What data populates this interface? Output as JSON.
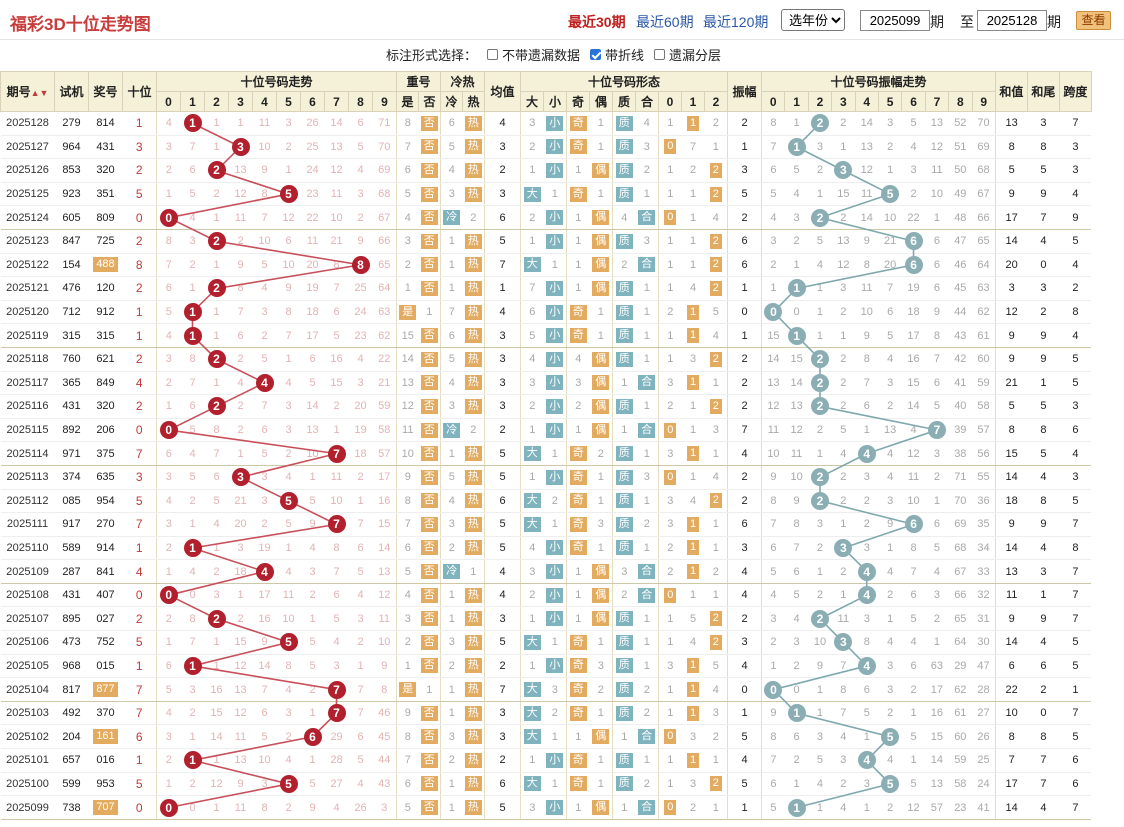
{
  "header": {
    "title": "福彩3D十位走势图",
    "range30": "最近30期",
    "range60": "最近60期",
    "range120": "最近120期",
    "year_select": "选年份",
    "from": "2025099",
    "to": "2025128",
    "qi1": "期",
    "zhi": "至",
    "qi2": "期",
    "query_label": "查看"
  },
  "options": {
    "prompt": "标注形式选择：",
    "o1": "不带遗漏数据",
    "o2": "带折线",
    "o3": "遗漏分层",
    "o1_on": false,
    "o2_on": true,
    "o3_on": false
  },
  "columns": {
    "qihao": "期号",
    "shiji": "试机",
    "jianghao": "奖号",
    "shiwei": "十位",
    "trend": "十位号码走势",
    "chong": "重号",
    "shi": "是",
    "fou": "否",
    "lengre": "冷热",
    "leng": "冷",
    "re": "热",
    "junzhi": "均值",
    "xingtai": "十位号码形态",
    "da": "大",
    "xiao": "小",
    "ji": "奇",
    "ou": "偶",
    "zhi": "质",
    "he": "合",
    "d0": "0",
    "d1": "1",
    "d2": "2",
    "zhenfu": "振幅",
    "zftrend": "十位号码振幅走势",
    "hezhi": "和值",
    "hewei": "和尾",
    "kuadu": "跨度",
    "digits": [
      "0",
      "1",
      "2",
      "3",
      "4",
      "5",
      "6",
      "7",
      "8",
      "9"
    ]
  },
  "colors": {
    "line_red": "#c8505a",
    "line_blue": "#7fa8ae",
    "ball_red": "#b21f2d",
    "ball_blue": "#8aaeb3",
    "badge_orange": "#e3ab60",
    "badge_teal": "#7fb3bd"
  },
  "rows": [
    {
      "q": "2025128",
      "sj": "279",
      "jh": "814",
      "sw": "1",
      "tw": [
        "4",
        "1",
        "1",
        "11",
        "3",
        "26",
        "14",
        "6",
        "71"
      ],
      "cf": "8",
      "lr": "6",
      "jz": "4",
      "zx": [
        "3",
        "1",
        "4",
        "1",
        "1",
        "2"
      ],
      "zf": "2",
      "zft": [
        "8",
        "1",
        "2",
        "14",
        "3",
        "5",
        "13",
        "52",
        "70"
      ],
      "hz": "13",
      "hw": "3",
      "kd": "7"
    },
    {
      "q": "2025127",
      "sj": "964",
      "jh": "431",
      "sw": "3",
      "tw": [
        "3",
        "7",
        "1",
        "10",
        "2",
        "25",
        "13",
        "5",
        "70"
      ],
      "cf": "7",
      "lr": "5",
      "jz": "3",
      "zx": [
        "2",
        "1",
        "3",
        "1",
        "7",
        "1"
      ],
      "zf": "1",
      "zft": [
        "7",
        "3",
        "1",
        "13",
        "2",
        "4",
        "12",
        "51",
        "69"
      ],
      "hz": "8",
      "hw": "8",
      "kd": "3"
    },
    {
      "q": "2025126",
      "sj": "853",
      "jh": "320",
      "sw": "2",
      "tw": [
        "2",
        "6",
        "13",
        "9",
        "1",
        "24",
        "12",
        "4",
        "69"
      ],
      "cf": "6",
      "lr": "4",
      "jz": "2",
      "zx": [
        "1",
        "1",
        "2",
        "1",
        "2",
        "6"
      ],
      "zf": "3",
      "zft": [
        "6",
        "5",
        "2",
        "12",
        "1",
        "3",
        "11",
        "50",
        "68"
      ],
      "hz": "5",
      "hw": "5",
      "kd": "3"
    },
    {
      "q": "2025125",
      "sj": "923",
      "jh": "351",
      "sw": "5",
      "tw": [
        "1",
        "5",
        "2",
        "12",
        "8",
        "23",
        "11",
        "3",
        "68"
      ],
      "cf": "5",
      "lr": "3",
      "jz": "3",
      "zx": [
        "1",
        "1",
        "1",
        "1",
        "1",
        "5"
      ],
      "zf": "5",
      "zft": [
        "5",
        "4",
        "1",
        "15",
        "11",
        "2",
        "10",
        "49",
        "67"
      ],
      "hz": "9",
      "hw": "9",
      "kd": "4"
    },
    {
      "q": "2025124",
      "sj": "605",
      "jh": "809",
      "sw": "0",
      "tw": [
        "4",
        "1",
        "11",
        "7",
        "12",
        "22",
        "10",
        "2",
        "67"
      ],
      "cf": "4",
      "lr": "2",
      "jz": "6",
      "zx": [
        "2",
        "1",
        "4",
        "1",
        "1",
        "4"
      ],
      "zf": "2",
      "zft": [
        "4",
        "3",
        "2",
        "14",
        "10",
        "22",
        "1",
        "48",
        "66"
      ],
      "hz": "17",
      "hw": "7",
      "kd": "9"
    },
    {
      "q": "2025123",
      "sj": "847",
      "jh": "725",
      "sw": "2",
      "tw": [
        "8",
        "3",
        "2",
        "10",
        "6",
        "11",
        "21",
        "9",
        "66"
      ],
      "cf": "3",
      "lr": "1",
      "jz": "5",
      "zx": [
        "1",
        "1",
        "3",
        "1",
        "1",
        "8"
      ],
      "zf": "6",
      "zft": [
        "3",
        "2",
        "5",
        "13",
        "9",
        "21",
        "6",
        "47",
        "65"
      ],
      "hz": "14",
      "hw": "4",
      "kd": "5"
    },
    {
      "q": "2025122",
      "sj": "154",
      "jh": "488",
      "sw": "8",
      "tw": [
        "7",
        "2",
        "1",
        "9",
        "5",
        "10",
        "20",
        "8",
        "65"
      ],
      "cf": "2",
      "lr": "1",
      "jz": "7",
      "zx": [
        "1",
        "1",
        "2",
        "1",
        "1",
        "7"
      ],
      "zf": "6",
      "zft": [
        "2",
        "1",
        "4",
        "12",
        "8",
        "20",
        "6",
        "46",
        "64"
      ],
      "hz": "20",
      "hw": "0",
      "kd": "4"
    },
    {
      "q": "2025121",
      "sj": "476",
      "jh": "120",
      "sw": "2",
      "tw": [
        "6",
        "1",
        "8",
        "4",
        "9",
        "19",
        "7",
        "25",
        "64"
      ],
      "cf": "1",
      "lr": "1",
      "jz": "1",
      "zx": [
        "7",
        "1",
        "1",
        "1",
        "4",
        "6"
      ],
      "zf": "1",
      "zft": [
        "1",
        "1",
        "3",
        "11",
        "7",
        "19",
        "6",
        "45",
        "63"
      ],
      "hz": "3",
      "hw": "3",
      "kd": "2"
    },
    {
      "q": "2025120",
      "sj": "712",
      "jh": "912",
      "sw": "1",
      "tw": [
        "5",
        "1",
        "7",
        "3",
        "8",
        "18",
        "6",
        "24",
        "63"
      ],
      "cf": "1",
      "lr": "7",
      "jz": "4",
      "zx": [
        "6",
        "1",
        "1",
        "2",
        "3",
        "5"
      ],
      "zf": "0",
      "zft": [
        "0",
        "1",
        "2",
        "10",
        "6",
        "18",
        "9",
        "44",
        "62"
      ],
      "hz": "12",
      "hw": "2",
      "kd": "8"
    },
    {
      "q": "2025119",
      "sj": "315",
      "jh": "315",
      "sw": "1",
      "tw": [
        "4",
        "1",
        "6",
        "2",
        "7",
        "17",
        "5",
        "23",
        "62"
      ],
      "cf": "15",
      "lr": "6",
      "jz": "3",
      "zx": [
        "5",
        "1",
        "1",
        "1",
        "2",
        "4"
      ],
      "zf": "1",
      "zft": [
        "15",
        "1",
        "1",
        "9",
        "5",
        "17",
        "8",
        "43",
        "61"
      ],
      "hz": "9",
      "hw": "9",
      "kd": "4"
    },
    {
      "q": "2025118",
      "sj": "760",
      "jh": "621",
      "sw": "2",
      "tw": [
        "3",
        "8",
        "2",
        "5",
        "1",
        "6",
        "16",
        "4",
        "22"
      ],
      "cf": "14",
      "lr": "5",
      "jz": "3",
      "zx": [
        "4",
        "4",
        "1",
        "1",
        "3",
        "1"
      ],
      "zf": "2",
      "zft": [
        "14",
        "15",
        "2",
        "8",
        "4",
        "16",
        "7",
        "42",
        "60"
      ],
      "hz": "9",
      "hw": "9",
      "kd": "5"
    },
    {
      "q": "2025117",
      "sj": "365",
      "jh": "849",
      "sw": "4",
      "tw": [
        "2",
        "7",
        "1",
        "4",
        "4",
        "5",
        "15",
        "3",
        "21"
      ],
      "cf": "13",
      "lr": "4",
      "jz": "3",
      "zx": [
        "3",
        "3",
        "1",
        "3",
        "2",
        "1"
      ],
      "zf": "2",
      "zft": [
        "13",
        "14",
        "2",
        "7",
        "3",
        "15",
        "6",
        "41",
        "59"
      ],
      "hz": "21",
      "hw": "1",
      "kd": "5"
    },
    {
      "q": "2025116",
      "sj": "431",
      "jh": "320",
      "sw": "2",
      "tw": [
        "1",
        "6",
        "2",
        "7",
        "3",
        "14",
        "2",
        "20",
        "59"
      ],
      "cf": "12",
      "lr": "3",
      "jz": "3",
      "zx": [
        "2",
        "2",
        "1",
        "2",
        "1",
        "1"
      ],
      "zf": "2",
      "zft": [
        "12",
        "13",
        "2",
        "6",
        "2",
        "14",
        "5",
        "40",
        "58"
      ],
      "hz": "5",
      "hw": "5",
      "kd": "3"
    },
    {
      "q": "2025115",
      "sj": "892",
      "jh": "206",
      "sw": "0",
      "tw": [
        "5",
        "8",
        "2",
        "6",
        "3",
        "13",
        "1",
        "19",
        "58"
      ],
      "cf": "11",
      "lr": "2",
      "jz": "2",
      "zx": [
        "1",
        "1",
        "1",
        "1",
        "1",
        "3"
      ],
      "zf": "7",
      "zft": [
        "11",
        "12",
        "2",
        "5",
        "1",
        "13",
        "4",
        "39",
        "57"
      ],
      "hz": "8",
      "hw": "8",
      "kd": "6"
    },
    {
      "q": "2025114",
      "sj": "971",
      "jh": "375",
      "sw": "7",
      "tw": [
        "6",
        "4",
        "7",
        "1",
        "5",
        "2",
        "10",
        "18",
        "57"
      ],
      "cf": "10",
      "lr": "1",
      "jz": "5",
      "zx": [
        "1",
        "2",
        "1",
        "3",
        "1",
        "1"
      ],
      "zf": "4",
      "zft": [
        "10",
        "11",
        "1",
        "4",
        "4",
        "12",
        "3",
        "38",
        "56"
      ],
      "hz": "15",
      "hw": "5",
      "kd": "4"
    },
    {
      "q": "2025113",
      "sj": "374",
      "jh": "635",
      "sw": "3",
      "tw": [
        "3",
        "5",
        "6",
        "3",
        "4",
        "1",
        "11",
        "2",
        "17"
      ],
      "cf": "9",
      "lr": "5",
      "jz": "5",
      "zx": [
        "1",
        "1",
        "3",
        "1",
        "1",
        "4"
      ],
      "zf": "2",
      "zft": [
        "9",
        "10",
        "2",
        "3",
        "4",
        "11",
        "2",
        "71",
        "55"
      ],
      "hz": "14",
      "hw": "4",
      "kd": "3"
    },
    {
      "q": "2025112",
      "sj": "085",
      "jh": "954",
      "sw": "5",
      "tw": [
        "4",
        "2",
        "5",
        "21",
        "3",
        "5",
        "10",
        "1",
        "16"
      ],
      "cf": "8",
      "lr": "4",
      "jz": "6",
      "zx": [
        "2",
        "1",
        "1",
        "3",
        "4",
        "2"
      ],
      "zf": "2",
      "zft": [
        "8",
        "9",
        "2",
        "2",
        "3",
        "10",
        "1",
        "70",
        "36"
      ],
      "hz": "18",
      "hw": "8",
      "kd": "5"
    },
    {
      "q": "2025111",
      "sj": "917",
      "jh": "270",
      "sw": "7",
      "tw": [
        "3",
        "1",
        "4",
        "20",
        "2",
        "5",
        "9",
        "7",
        "15"
      ],
      "cf": "7",
      "lr": "3",
      "jz": "5",
      "zx": [
        "1",
        "3",
        "2",
        "3",
        "2",
        "1"
      ],
      "zf": "6",
      "zft": [
        "7",
        "8",
        "3",
        "1",
        "2",
        "9",
        "6",
        "69",
        "35"
      ],
      "hz": "9",
      "hw": "9",
      "kd": "7"
    },
    {
      "q": "2025110",
      "sj": "589",
      "jh": "914",
      "sw": "1",
      "tw": [
        "2",
        "1",
        "3",
        "19",
        "1",
        "4",
        "8",
        "6",
        "14"
      ],
      "cf": "6",
      "lr": "2",
      "jz": "5",
      "zx": [
        "4",
        "1",
        "1",
        "2",
        "1",
        "1"
      ],
      "zf": "3",
      "zft": [
        "6",
        "7",
        "2",
        "3",
        "1",
        "8",
        "5",
        "68",
        "34"
      ],
      "hz": "14",
      "hw": "4",
      "kd": "8"
    },
    {
      "q": "2025109",
      "sj": "287",
      "jh": "841",
      "sw": "4",
      "tw": [
        "1",
        "4",
        "2",
        "18",
        "4",
        "3",
        "7",
        "5",
        "13"
      ],
      "cf": "5",
      "lr": "1",
      "jz": "4",
      "zx": [
        "3",
        "1",
        "3",
        "2",
        "1",
        "2"
      ],
      "zf": "4",
      "zft": [
        "5",
        "6",
        "1",
        "2",
        "4",
        "7",
        "4",
        "67",
        "33"
      ],
      "hz": "13",
      "hw": "3",
      "kd": "7"
    },
    {
      "q": "2025108",
      "sj": "431",
      "jh": "407",
      "sw": "0",
      "tw": [
        "0",
        "3",
        "1",
        "17",
        "11",
        "2",
        "6",
        "4",
        "12"
      ],
      "cf": "4",
      "lr": "1",
      "jz": "4",
      "zx": [
        "2",
        "1",
        "2",
        "1",
        "1",
        "1"
      ],
      "zf": "4",
      "zft": [
        "4",
        "5",
        "2",
        "1",
        "2",
        "6",
        "3",
        "66",
        "32"
      ],
      "hz": "11",
      "hw": "1",
      "kd": "7"
    },
    {
      "q": "2025107",
      "sj": "895",
      "jh": "027",
      "sw": "2",
      "tw": [
        "2",
        "8",
        "2",
        "16",
        "10",
        "1",
        "5",
        "3",
        "11"
      ],
      "cf": "3",
      "lr": "1",
      "jz": "3",
      "zx": [
        "1",
        "1",
        "1",
        "1",
        "5",
        "2"
      ],
      "zf": "2",
      "zft": [
        "3",
        "4",
        "11",
        "3",
        "1",
        "5",
        "2",
        "65",
        "31"
      ],
      "hz": "9",
      "hw": "9",
      "kd": "7"
    },
    {
      "q": "2025106",
      "sj": "473",
      "jh": "752",
      "sw": "5",
      "tw": [
        "1",
        "7",
        "1",
        "15",
        "9",
        "5",
        "4",
        "2",
        "10"
      ],
      "cf": "2",
      "lr": "3",
      "jz": "5",
      "zx": [
        "1",
        "1",
        "1",
        "1",
        "4",
        "1"
      ],
      "zf": "3",
      "zft": [
        "2",
        "3",
        "10",
        "8",
        "4",
        "4",
        "1",
        "64",
        "30"
      ],
      "hz": "14",
      "hw": "4",
      "kd": "5"
    },
    {
      "q": "2025105",
      "sj": "968",
      "jh": "015",
      "sw": "1",
      "tw": [
        "6",
        "1",
        "12",
        "14",
        "8",
        "5",
        "3",
        "1",
        "9"
      ],
      "cf": "1",
      "lr": "2",
      "jz": "2",
      "zx": [
        "1",
        "3",
        "1",
        "3",
        "1",
        "5"
      ],
      "zf": "4",
      "zft": [
        "1",
        "2",
        "9",
        "7",
        "3",
        "6",
        "63",
        "29",
        "47"
      ],
      "hz": "6",
      "hw": "6",
      "kd": "5"
    },
    {
      "q": "2025104",
      "sj": "817",
      "jh": "877",
      "sw": "7",
      "tw": [
        "5",
        "3",
        "16",
        "13",
        "7",
        "4",
        "2",
        "7",
        "8"
      ],
      "cf": "1",
      "lr": "1",
      "jz": "7",
      "zx": [
        "3",
        "2",
        "2",
        "1",
        "2",
        "4"
      ],
      "zf": "0",
      "zft": [
        "0",
        "1",
        "8",
        "6",
        "3",
        "2",
        "17",
        "62",
        "28"
      ],
      "hz": "22",
      "hw": "2",
      "kd": "1"
    },
    {
      "q": "2025103",
      "sj": "492",
      "jh": "370",
      "sw": "7",
      "tw": [
        "4",
        "2",
        "15",
        "12",
        "6",
        "3",
        "1",
        "7",
        "46"
      ],
      "cf": "9",
      "lr": "1",
      "jz": "3",
      "zx": [
        "2",
        "1",
        "2",
        "1",
        "4",
        "3"
      ],
      "zf": "1",
      "zft": [
        "9",
        "1",
        "7",
        "5",
        "2",
        "1",
        "16",
        "61",
        "27"
      ],
      "hz": "10",
      "hw": "0",
      "kd": "7"
    },
    {
      "q": "2025102",
      "sj": "204",
      "jh": "161",
      "sw": "6",
      "tw": [
        "3",
        "1",
        "14",
        "11",
        "5",
        "2",
        "29",
        "6",
        "45"
      ],
      "cf": "8",
      "lr": "3",
      "jz": "3",
      "zx": [
        "1",
        "1",
        "1",
        "1",
        "3",
        "2"
      ],
      "zf": "5",
      "zft": [
        "8",
        "6",
        "3",
        "4",
        "1",
        "5",
        "15",
        "60",
        "26"
      ],
      "hz": "8",
      "hw": "8",
      "kd": "5"
    },
    {
      "q": "2025101",
      "sj": "657",
      "jh": "016",
      "sw": "1",
      "tw": [
        "2",
        "1",
        "13",
        "10",
        "4",
        "1",
        "28",
        "5",
        "44"
      ],
      "cf": "7",
      "lr": "2",
      "jz": "2",
      "zx": [
        "1",
        "1",
        "1",
        "1",
        "2",
        "1"
      ],
      "zf": "4",
      "zft": [
        "7",
        "2",
        "5",
        "3",
        "4",
        "1",
        "14",
        "59",
        "25"
      ],
      "hz": "7",
      "hw": "7",
      "kd": "6"
    },
    {
      "q": "2025100",
      "sj": "599",
      "jh": "953",
      "sw": "5",
      "tw": [
        "1",
        "2",
        "12",
        "9",
        "3",
        "5",
        "27",
        "4",
        "43"
      ],
      "cf": "6",
      "lr": "1",
      "jz": "6",
      "zx": [
        "1",
        "1",
        "2",
        "1",
        "3",
        "1"
      ],
      "zf": "5",
      "zft": [
        "6",
        "1",
        "4",
        "2",
        "3",
        "5",
        "13",
        "58",
        "24"
      ],
      "hz": "17",
      "hw": "7",
      "kd": "6"
    },
    {
      "q": "2025099",
      "sj": "738",
      "jh": "707",
      "sw": "0",
      "tw": [
        "0",
        "1",
        "11",
        "8",
        "2",
        "9",
        "4",
        "26",
        "3"
      ],
      "cf": "5",
      "lr": "1",
      "jz": "5",
      "zx": [
        "3",
        "1",
        "1",
        "1",
        "2",
        "1"
      ],
      "zf": "1",
      "zft": [
        "5",
        "1",
        "4",
        "1",
        "2",
        "12",
        "57",
        "23",
        "41"
      ],
      "hz": "14",
      "hw": "4",
      "kd": "7"
    }
  ]
}
